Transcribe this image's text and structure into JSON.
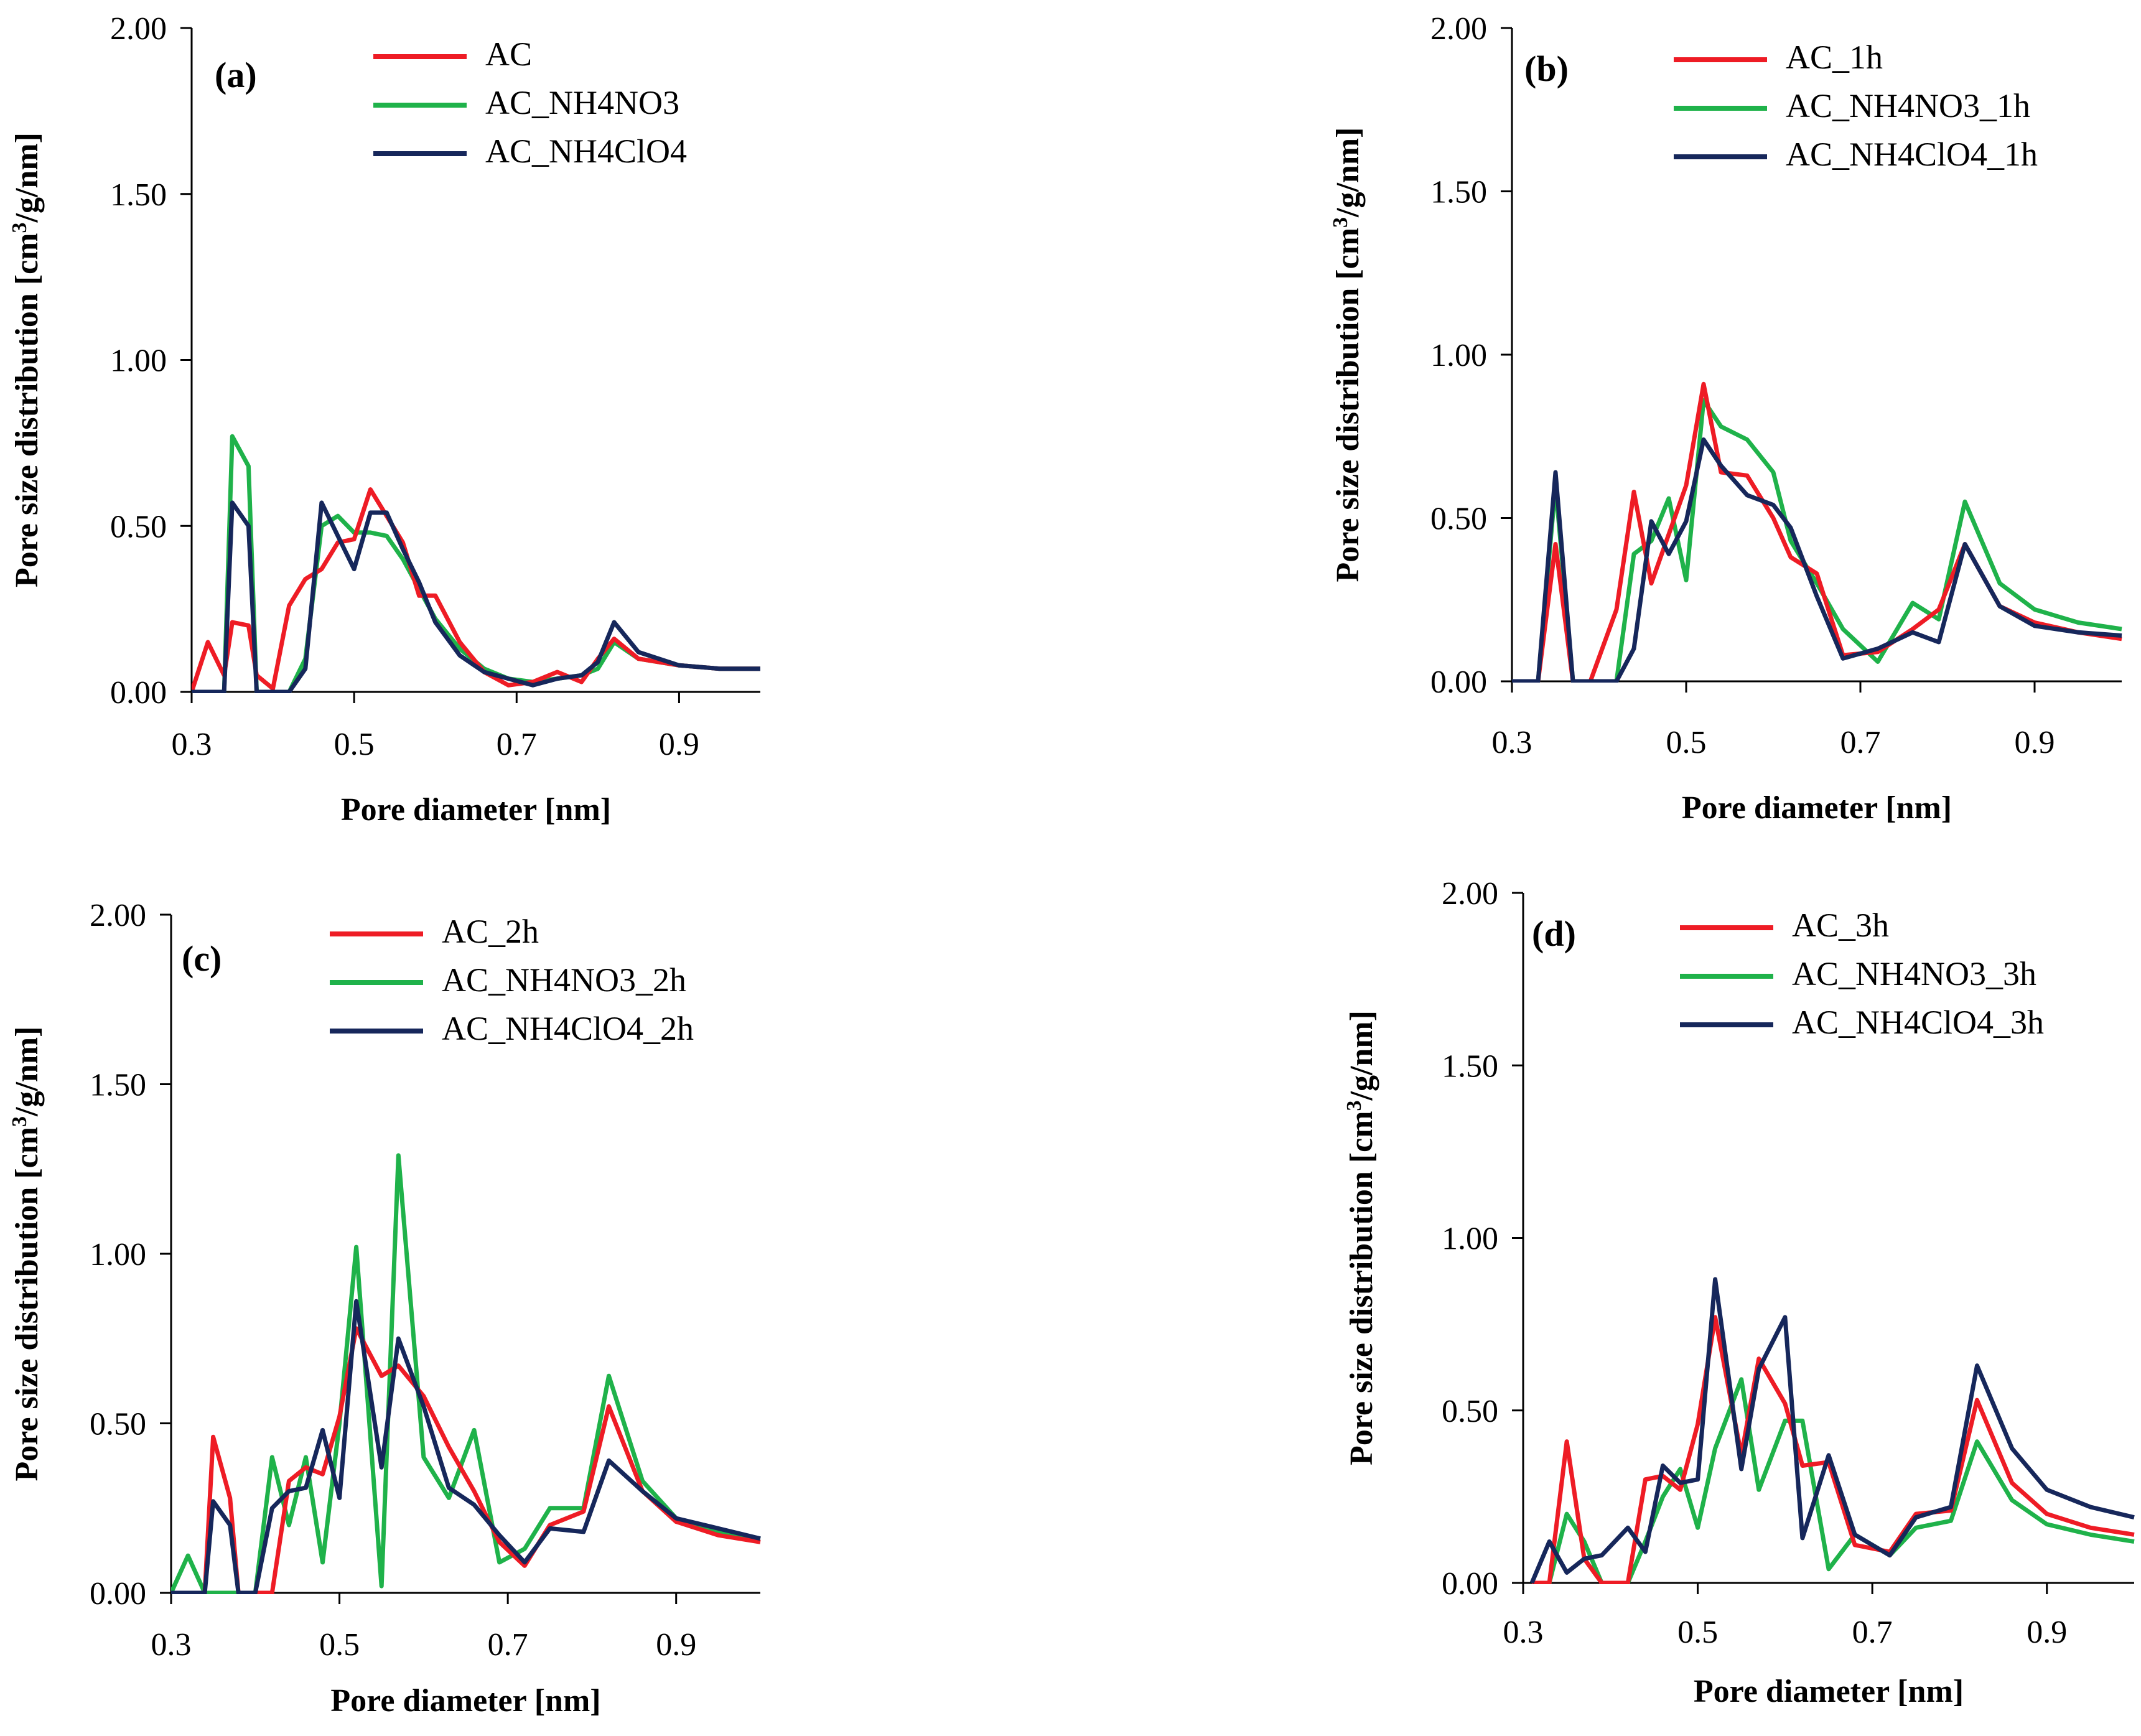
{
  "figure": {
    "description_free": true
  },
  "colors": {
    "series1": "#ee1c25",
    "series2": "#1fb24a",
    "series3": "#16275b",
    "axis": "#000000"
  },
  "chart_data": [
    {
      "type": "line",
      "panel_label": "(a)",
      "xlabel": "Pore diameter [nm]",
      "ylabel_main": "Pore size distribution [cm",
      "ylabel_sup": "3",
      "ylabel_tail": "/g/nm]",
      "xlim": [
        0.3,
        1.0
      ],
      "ylim": [
        0,
        2.0
      ],
      "xticks": [
        0.3,
        0.5,
        0.7,
        0.9
      ],
      "xtick_labels": [
        "0.3",
        "0.5",
        "0.7",
        "0.9"
      ],
      "yticks": [
        0,
        0.5,
        1.0,
        1.5,
        2.0
      ],
      "ytick_labels": [
        "0.00",
        "0.50",
        "1.00",
        "1.50",
        "2.00"
      ],
      "legend_position": "top-center",
      "series": [
        {
          "name": "AC",
          "color": "#ee1c25",
          "x": [
            0.3,
            0.32,
            0.34,
            0.35,
            0.37,
            0.38,
            0.4,
            0.42,
            0.44,
            0.46,
            0.48,
            0.5,
            0.52,
            0.54,
            0.56,
            0.58,
            0.6,
            0.63,
            0.66,
            0.69,
            0.72,
            0.75,
            0.78,
            0.8,
            0.82,
            0.85,
            0.9,
            0.95,
            1.0
          ],
          "y": [
            0.0,
            0.15,
            0.05,
            0.21,
            0.2,
            0.05,
            0.01,
            0.26,
            0.34,
            0.37,
            0.45,
            0.46,
            0.61,
            0.53,
            0.45,
            0.29,
            0.29,
            0.15,
            0.06,
            0.02,
            0.03,
            0.06,
            0.03,
            0.1,
            0.16,
            0.1,
            0.08,
            0.07,
            0.07
          ]
        },
        {
          "name": "AC_NH4NO3",
          "color": "#1fb24a",
          "x": [
            0.3,
            0.32,
            0.34,
            0.35,
            0.37,
            0.38,
            0.4,
            0.42,
            0.44,
            0.46,
            0.48,
            0.5,
            0.52,
            0.54,
            0.56,
            0.58,
            0.6,
            0.63,
            0.66,
            0.69,
            0.72,
            0.75,
            0.78,
            0.8,
            0.82,
            0.85,
            0.9,
            0.95,
            1.0
          ],
          "y": [
            0.0,
            0.0,
            0.0,
            0.77,
            0.68,
            0.0,
            0.0,
            0.0,
            0.1,
            0.5,
            0.53,
            0.48,
            0.48,
            0.47,
            0.4,
            0.31,
            0.22,
            0.13,
            0.07,
            0.04,
            0.03,
            0.04,
            0.05,
            0.07,
            0.15,
            0.1,
            0.08,
            0.07,
            0.07
          ]
        },
        {
          "name": "AC_NH4ClO4",
          "color": "#16275b",
          "x": [
            0.3,
            0.32,
            0.34,
            0.35,
            0.37,
            0.38,
            0.4,
            0.42,
            0.44,
            0.46,
            0.48,
            0.5,
            0.52,
            0.54,
            0.56,
            0.58,
            0.6,
            0.63,
            0.66,
            0.69,
            0.72,
            0.75,
            0.78,
            0.8,
            0.82,
            0.85,
            0.9,
            0.95,
            1.0
          ],
          "y": [
            0.0,
            0.0,
            0.0,
            0.57,
            0.5,
            0.0,
            0.0,
            0.0,
            0.07,
            0.57,
            0.47,
            0.37,
            0.54,
            0.54,
            0.43,
            0.33,
            0.21,
            0.11,
            0.06,
            0.04,
            0.02,
            0.04,
            0.05,
            0.09,
            0.21,
            0.12,
            0.08,
            0.07,
            0.07
          ]
        }
      ]
    },
    {
      "type": "line",
      "panel_label": "(b)",
      "xlabel": "Pore diameter [nm]",
      "ylabel_main": "Pore size distribution [cm",
      "ylabel_sup": "3",
      "ylabel_tail": "/g/nm]",
      "xlim": [
        0.3,
        1.0
      ],
      "ylim": [
        0,
        2.0
      ],
      "xticks": [
        0.3,
        0.5,
        0.7,
        0.9
      ],
      "xtick_labels": [
        "0.3",
        "0.5",
        "0.7",
        "0.9"
      ],
      "yticks": [
        0,
        0.5,
        1.0,
        1.5,
        2.0
      ],
      "ytick_labels": [
        "0.00",
        "0.50",
        "1.00",
        "1.50",
        "2.00"
      ],
      "legend_position": "top-center",
      "series": [
        {
          "name": "AC_1h",
          "color": "#ee1c25",
          "x": [
            0.3,
            0.33,
            0.35,
            0.37,
            0.39,
            0.42,
            0.44,
            0.46,
            0.48,
            0.5,
            0.52,
            0.54,
            0.57,
            0.6,
            0.62,
            0.65,
            0.68,
            0.72,
            0.76,
            0.79,
            0.82,
            0.86,
            0.9,
            0.95,
            1.0
          ],
          "y": [
            0.0,
            0.0,
            0.42,
            0.0,
            0.0,
            0.22,
            0.58,
            0.3,
            0.45,
            0.6,
            0.91,
            0.64,
            0.63,
            0.5,
            0.38,
            0.33,
            0.08,
            0.09,
            0.16,
            0.22,
            0.42,
            0.23,
            0.18,
            0.15,
            0.13
          ]
        },
        {
          "name": "AC_NH4NO3_1h",
          "color": "#1fb24a",
          "x": [
            0.3,
            0.33,
            0.35,
            0.37,
            0.39,
            0.42,
            0.44,
            0.46,
            0.48,
            0.5,
            0.52,
            0.54,
            0.57,
            0.6,
            0.62,
            0.65,
            0.68,
            0.72,
            0.76,
            0.79,
            0.82,
            0.86,
            0.9,
            0.95,
            1.0
          ],
          "y": [
            0.0,
            0.0,
            0.6,
            0.0,
            0.0,
            0.0,
            0.39,
            0.43,
            0.56,
            0.31,
            0.86,
            0.78,
            0.74,
            0.64,
            0.43,
            0.3,
            0.16,
            0.06,
            0.24,
            0.19,
            0.55,
            0.3,
            0.22,
            0.18,
            0.16
          ]
        },
        {
          "name": "AC_NH4ClO4_1h",
          "color": "#16275b",
          "x": [
            0.3,
            0.33,
            0.35,
            0.37,
            0.39,
            0.42,
            0.44,
            0.46,
            0.48,
            0.5,
            0.52,
            0.54,
            0.57,
            0.6,
            0.62,
            0.65,
            0.68,
            0.72,
            0.76,
            0.79,
            0.82,
            0.86,
            0.9,
            0.95,
            1.0
          ],
          "y": [
            0.0,
            0.0,
            0.64,
            0.0,
            0.0,
            0.0,
            0.1,
            0.49,
            0.39,
            0.49,
            0.74,
            0.66,
            0.57,
            0.54,
            0.47,
            0.26,
            0.07,
            0.1,
            0.15,
            0.12,
            0.42,
            0.23,
            0.17,
            0.15,
            0.14
          ]
        }
      ]
    },
    {
      "type": "line",
      "panel_label": "(c)",
      "xlabel": "Pore diameter [nm]",
      "ylabel_main": "Pore size distribution [cm",
      "ylabel_sup": "3",
      "ylabel_tail": "/g/nm]",
      "xlim": [
        0.3,
        1.0
      ],
      "ylim": [
        0,
        2.0
      ],
      "xticks": [
        0.3,
        0.5,
        0.7,
        0.9
      ],
      "xtick_labels": [
        "0.3",
        "0.5",
        "0.7",
        "0.9"
      ],
      "yticks": [
        0,
        0.5,
        1.0,
        1.5,
        2.0
      ],
      "ytick_labels": [
        "0.00",
        "0.50",
        "1.00",
        "1.50",
        "2.00"
      ],
      "legend_position": "top-left",
      "series": [
        {
          "name": "AC_2h",
          "color": "#ee1c25",
          "x": [
            0.3,
            0.32,
            0.34,
            0.35,
            0.37,
            0.38,
            0.4,
            0.42,
            0.44,
            0.46,
            0.48,
            0.5,
            0.52,
            0.55,
            0.57,
            0.6,
            0.63,
            0.66,
            0.69,
            0.72,
            0.75,
            0.79,
            0.82,
            0.86,
            0.9,
            0.95,
            1.0
          ],
          "y": [
            0.0,
            0.0,
            0.0,
            0.46,
            0.28,
            0.0,
            0.0,
            0.0,
            0.33,
            0.37,
            0.35,
            0.52,
            0.78,
            0.64,
            0.67,
            0.58,
            0.43,
            0.3,
            0.15,
            0.08,
            0.2,
            0.24,
            0.55,
            0.3,
            0.21,
            0.17,
            0.15
          ]
        },
        {
          "name": "AC_NH4NO3_2h",
          "color": "#1fb24a",
          "x": [
            0.3,
            0.32,
            0.34,
            0.35,
            0.37,
            0.38,
            0.4,
            0.42,
            0.44,
            0.46,
            0.48,
            0.5,
            0.52,
            0.55,
            0.57,
            0.6,
            0.63,
            0.66,
            0.69,
            0.72,
            0.75,
            0.79,
            0.82,
            0.86,
            0.9,
            0.95,
            1.0
          ],
          "y": [
            0.0,
            0.11,
            0.0,
            0.0,
            0.0,
            0.0,
            0.0,
            0.4,
            0.2,
            0.4,
            0.09,
            0.5,
            1.02,
            0.02,
            1.29,
            0.4,
            0.28,
            0.48,
            0.09,
            0.13,
            0.25,
            0.25,
            0.64,
            0.33,
            0.22,
            0.18,
            0.16
          ]
        },
        {
          "name": "AC_NH4ClO4_2h",
          "color": "#16275b",
          "x": [
            0.3,
            0.32,
            0.34,
            0.35,
            0.37,
            0.38,
            0.4,
            0.42,
            0.44,
            0.46,
            0.48,
            0.5,
            0.52,
            0.55,
            0.57,
            0.6,
            0.63,
            0.66,
            0.69,
            0.72,
            0.75,
            0.79,
            0.82,
            0.86,
            0.9,
            0.95,
            1.0
          ],
          "y": [
            0.0,
            0.0,
            0.0,
            0.27,
            0.2,
            0.0,
            0.0,
            0.25,
            0.3,
            0.31,
            0.48,
            0.28,
            0.86,
            0.37,
            0.75,
            0.55,
            0.31,
            0.26,
            0.17,
            0.09,
            0.19,
            0.18,
            0.39,
            0.3,
            0.22,
            0.19,
            0.16
          ]
        }
      ]
    },
    {
      "type": "line",
      "panel_label": "(d)",
      "xlabel": "Pore diameter [nm]",
      "ylabel_main": "Pore size distribution [cm",
      "ylabel_sup": "3",
      "ylabel_tail": "/g/nm]",
      "xlim": [
        0.3,
        1.0
      ],
      "ylim": [
        0,
        2.0
      ],
      "xticks": [
        0.3,
        0.5,
        0.7,
        0.9
      ],
      "xtick_labels": [
        "0.3",
        "0.5",
        "0.7",
        "0.9"
      ],
      "yticks": [
        0,
        0.5,
        1.0,
        1.5,
        2.0
      ],
      "ytick_labels": [
        "0.00",
        "0.50",
        "1.00",
        "1.50",
        "2.00"
      ],
      "legend_position": "top-center",
      "series": [
        {
          "name": "AC_3h",
          "color": "#ee1c25",
          "x": [
            0.31,
            0.33,
            0.35,
            0.37,
            0.39,
            0.42,
            0.44,
            0.46,
            0.48,
            0.5,
            0.52,
            0.55,
            0.57,
            0.6,
            0.62,
            0.65,
            0.68,
            0.72,
            0.75,
            0.79,
            0.82,
            0.86,
            0.9,
            0.95,
            1.0
          ],
          "y": [
            0.0,
            0.0,
            0.41,
            0.07,
            0.0,
            0.0,
            0.3,
            0.31,
            0.27,
            0.46,
            0.77,
            0.37,
            0.65,
            0.52,
            0.34,
            0.35,
            0.11,
            0.09,
            0.2,
            0.21,
            0.53,
            0.29,
            0.2,
            0.16,
            0.14
          ]
        },
        {
          "name": "AC_NH4NO3_3h",
          "color": "#1fb24a",
          "x": [
            0.31,
            0.33,
            0.35,
            0.37,
            0.39,
            0.42,
            0.44,
            0.46,
            0.48,
            0.5,
            0.52,
            0.55,
            0.57,
            0.6,
            0.62,
            0.65,
            0.68,
            0.72,
            0.75,
            0.79,
            0.82,
            0.86,
            0.9,
            0.95,
            1.0
          ],
          "y": [
            0.0,
            0.0,
            0.2,
            0.12,
            0.0,
            0.0,
            0.12,
            0.25,
            0.33,
            0.16,
            0.39,
            0.59,
            0.27,
            0.47,
            0.47,
            0.04,
            0.14,
            0.08,
            0.16,
            0.18,
            0.41,
            0.24,
            0.17,
            0.14,
            0.12
          ]
        },
        {
          "name": "AC_NH4ClO4_3h",
          "color": "#16275b",
          "x": [
            0.31,
            0.33,
            0.35,
            0.37,
            0.39,
            0.42,
            0.44,
            0.46,
            0.48,
            0.5,
            0.52,
            0.55,
            0.57,
            0.6,
            0.62,
            0.65,
            0.68,
            0.72,
            0.75,
            0.79,
            0.82,
            0.86,
            0.9,
            0.95,
            1.0
          ],
          "y": [
            0.0,
            0.12,
            0.03,
            0.07,
            0.08,
            0.16,
            0.09,
            0.34,
            0.29,
            0.3,
            0.88,
            0.33,
            0.62,
            0.77,
            0.13,
            0.37,
            0.14,
            0.08,
            0.19,
            0.22,
            0.63,
            0.39,
            0.27,
            0.22,
            0.19
          ]
        }
      ]
    }
  ]
}
